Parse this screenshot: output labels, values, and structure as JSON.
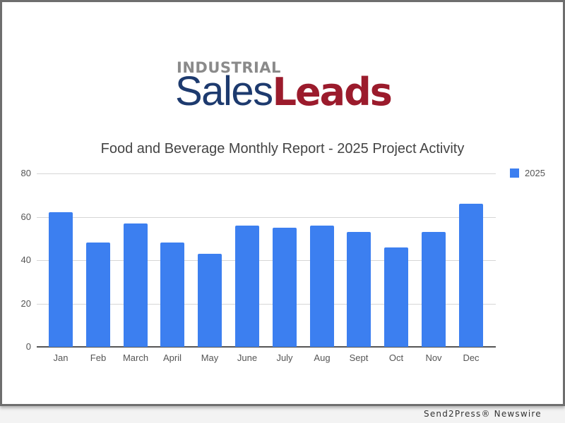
{
  "logo": {
    "top": "INDUSTRIAL",
    "sales": "Sales",
    "leads": "Leads"
  },
  "colors": {
    "bar": "#3c7ff0",
    "logo_blue": "#1d3a6e",
    "logo_red": "#9b1b2c",
    "logo_gray": "#8a8a8a"
  },
  "credit": "Send2Press® Newswire",
  "chart_data": {
    "type": "bar",
    "title": "Food and Beverage Monthly Report - 2025 Project Activity",
    "xlabel": "",
    "ylabel": "",
    "ylim": [
      0,
      80
    ],
    "yticks": [
      "0",
      "20",
      "40",
      "60",
      "80"
    ],
    "grid": true,
    "legend_position": "right",
    "categories": [
      "Jan",
      "Feb",
      "March",
      "April",
      "May",
      "June",
      "July",
      "Aug",
      "Sept",
      "Oct",
      "Nov",
      "Dec"
    ],
    "series": [
      {
        "name": "2025",
        "values": [
          62,
          48,
          57,
          48,
          43,
          56,
          55,
          56,
          53,
          46,
          53,
          66
        ]
      }
    ]
  }
}
